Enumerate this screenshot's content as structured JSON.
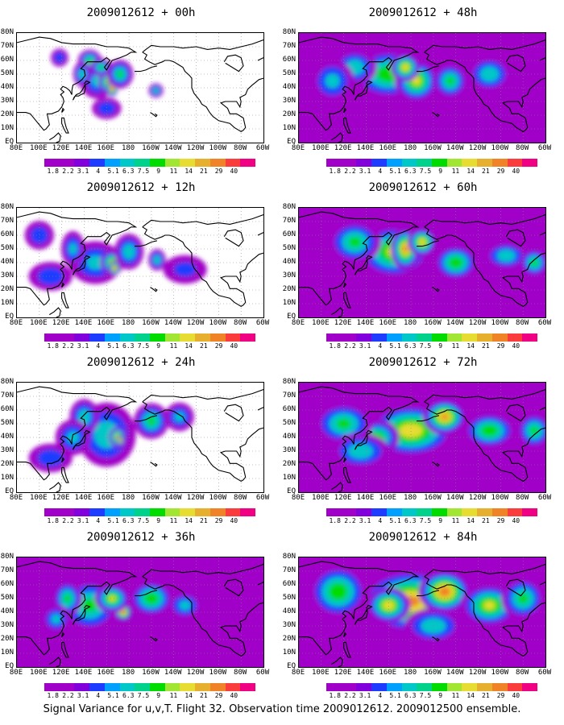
{
  "caption": "Signal Variance for u,v,T. Flight 32. Observation time 2009012612. 2009012500 ensemble.",
  "colorbar": {
    "labels": [
      "1.8",
      "2.2",
      "3.1",
      "4",
      "5.1",
      "6.3",
      "7.5",
      "9",
      "11",
      "14",
      "21",
      "29",
      "40"
    ],
    "colors": [
      "#a000c8",
      "#8200dc",
      "#1e3cff",
      "#00a0ff",
      "#00c8c8",
      "#00d28c",
      "#00dc00",
      "#a0e632",
      "#e6dc32",
      "#e6af2d",
      "#f08228",
      "#fa3c3c",
      "#f00082"
    ]
  },
  "axes": {
    "lat_labels": [
      "80N",
      "70N",
      "60N",
      "50N",
      "40N",
      "30N",
      "20N",
      "10N",
      "EQ"
    ],
    "lon_labels": [
      "80E",
      "100E",
      "120E",
      "140E",
      "160E",
      "180",
      "160W",
      "140W",
      "120W",
      "100W",
      "80W",
      "60W"
    ]
  },
  "panels": [
    {
      "title": "2009012612 + 00h",
      "level": 0.18
    },
    {
      "title": "2009012612 + 12h",
      "level": 0.32
    },
    {
      "title": "2009012612 + 24h",
      "level": 0.42
    },
    {
      "title": "2009012612 + 36h",
      "level": 0.52
    },
    {
      "title": "2009012612 + 48h",
      "level": 0.55
    },
    {
      "title": "2009012612 + 60h",
      "level": 0.62
    },
    {
      "title": "2009012612 + 72h",
      "level": 0.7
    },
    {
      "title": "2009012612 + 84h",
      "level": 0.8
    }
  ]
}
